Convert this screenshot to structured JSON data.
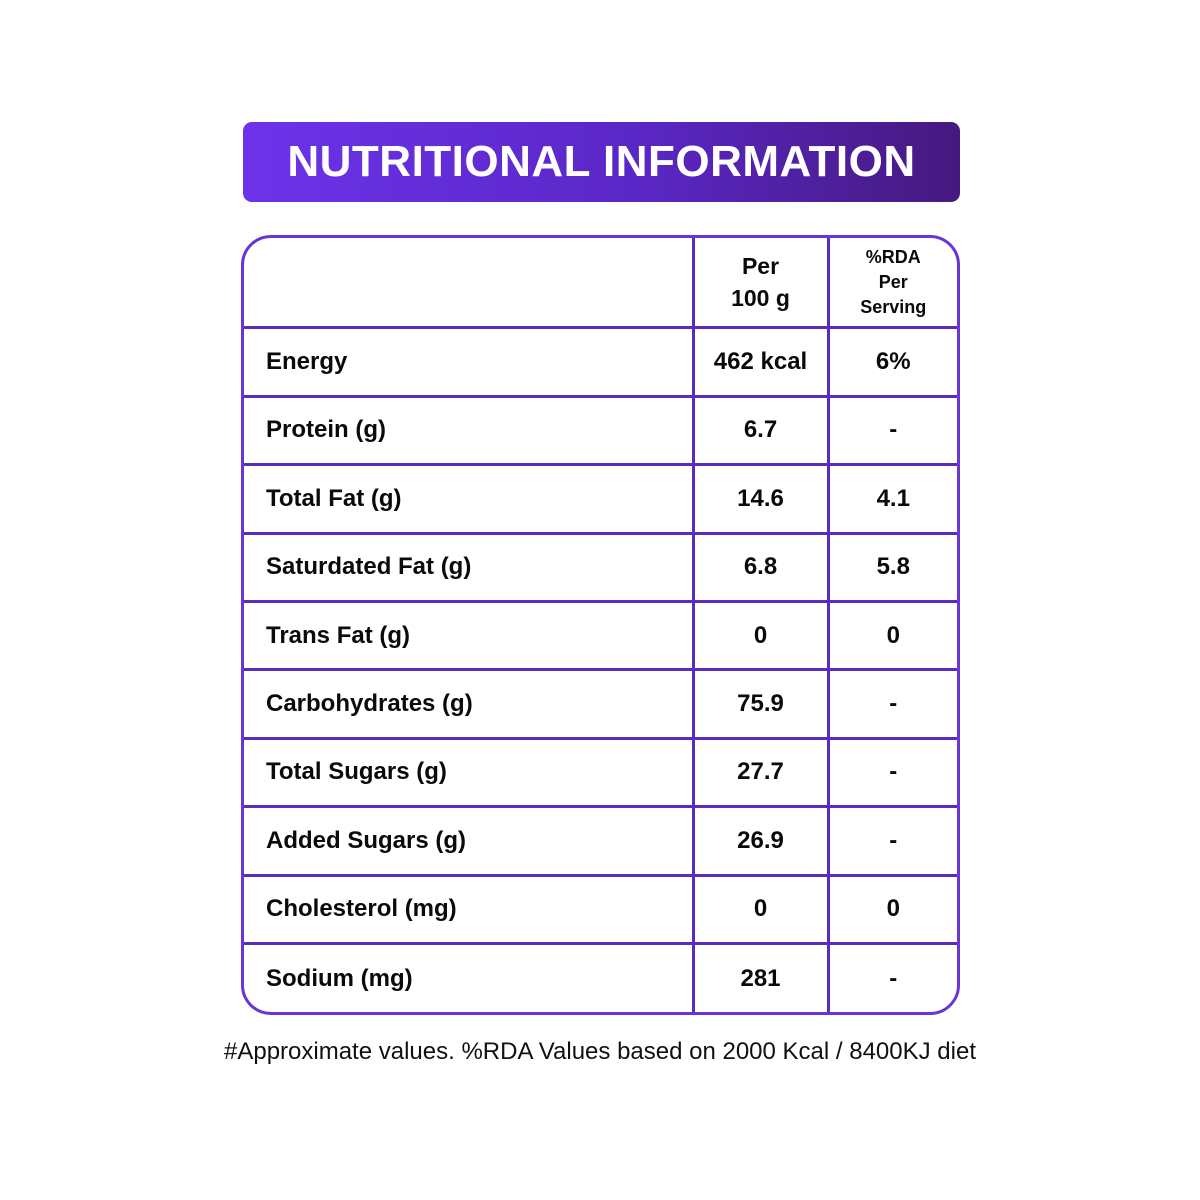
{
  "title": "NUTRITIONAL INFORMATION",
  "colors": {
    "accent_start": "#6c33ea",
    "accent_end": "#45197f",
    "table_border": "#5a2bbf",
    "text": "#0a0a0a"
  },
  "table": {
    "headers": {
      "nutrient": "",
      "per_100g": [
        "Per",
        "100 g"
      ],
      "rda": [
        "%RDA",
        "Per",
        "Serving"
      ]
    },
    "rows": [
      {
        "name": "Energy",
        "per_100g": "462 kcal",
        "rda": "6%"
      },
      {
        "name": "Protein (g)",
        "per_100g": "6.7",
        "rda": "-"
      },
      {
        "name": "Total Fat (g)",
        "per_100g": "14.6",
        "rda": "4.1"
      },
      {
        "name": "Saturdated Fat (g)",
        "per_100g": "6.8",
        "rda": "5.8"
      },
      {
        "name": "Trans Fat (g)",
        "per_100g": "0",
        "rda": "0"
      },
      {
        "name": "Carbohydrates (g)",
        "per_100g": "75.9",
        "rda": "-"
      },
      {
        "name": "Total Sugars (g)",
        "per_100g": "27.7",
        "rda": "-"
      },
      {
        "name": "Added Sugars (g)",
        "per_100g": "26.9",
        "rda": "-"
      },
      {
        "name": "Cholesterol (mg)",
        "per_100g": "0",
        "rda": "0"
      },
      {
        "name": "Sodium (mg)",
        "per_100g": "281",
        "rda": "-"
      }
    ]
  },
  "footnote": "#Approximate values. %RDA Values based on 2000 Kcal / 8400KJ diet"
}
